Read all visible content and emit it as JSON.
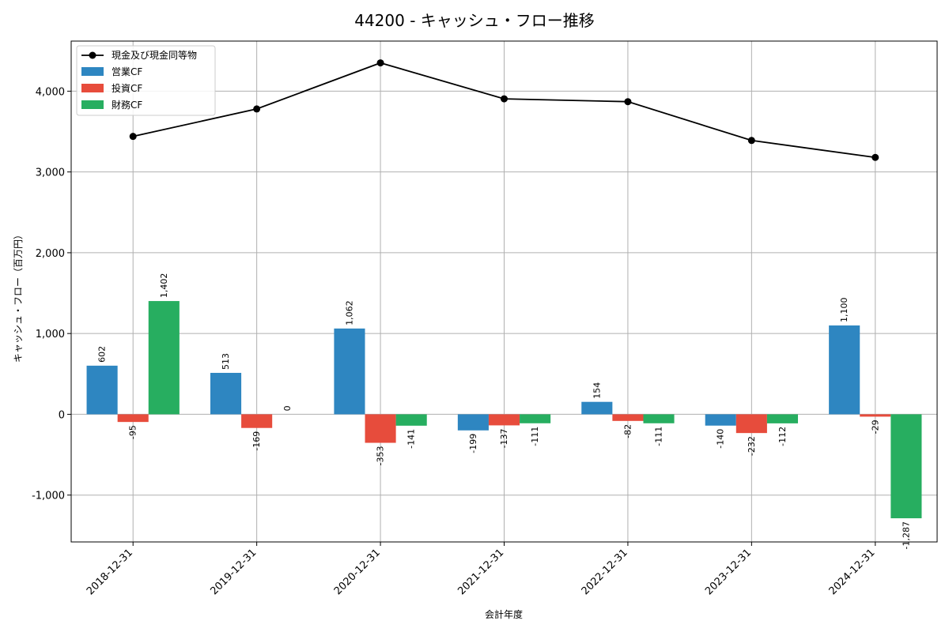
{
  "chart_data": {
    "type": "bar",
    "title": "44200 - キャッシュ・フロー推移",
    "xlabel": "会計年度",
    "ylabel": "キャッシュ・フロー（百万円）",
    "categories": [
      "2018-12-31",
      "2019-12-31",
      "2020-12-31",
      "2021-12-31",
      "2022-12-31",
      "2023-12-31",
      "2024-12-31"
    ],
    "ylim": [
      -1580,
      4620
    ],
    "yticks": [
      -1000,
      0,
      1000,
      2000,
      3000,
      4000
    ],
    "ytick_labels": [
      "-1,000",
      "0",
      "1,000",
      "2,000",
      "3,000",
      "4,000"
    ],
    "grid": true,
    "legend_position": "top-left",
    "series": [
      {
        "name": "営業CF",
        "kind": "bar",
        "color": "#2e86c1",
        "values": [
          602,
          513,
          1062,
          -199,
          154,
          -140,
          1100
        ],
        "labels": [
          "602",
          "513",
          "1,062",
          "-199",
          "154",
          "-140",
          "1,100"
        ]
      },
      {
        "name": "投資CF",
        "kind": "bar",
        "color": "#e74c3c",
        "values": [
          -95,
          -169,
          -353,
          -137,
          -82,
          -232,
          -29
        ],
        "labels": [
          "-95",
          "-169",
          "-353",
          "-137",
          "-82",
          "-232",
          "-29"
        ]
      },
      {
        "name": "財務CF",
        "kind": "bar",
        "color": "#27ae60",
        "values": [
          1402,
          0,
          -141,
          -111,
          -111,
          -112,
          -1287
        ],
        "labels": [
          "1,402",
          "0",
          "-141",
          "-111",
          "-111",
          "-112",
          "-1,287"
        ]
      }
    ],
    "line_series": {
      "name": "現金及び現金同等物",
      "kind": "line",
      "color": "#000000",
      "values": [
        3440,
        3780,
        4350,
        3905,
        3870,
        3390,
        3180
      ]
    }
  }
}
